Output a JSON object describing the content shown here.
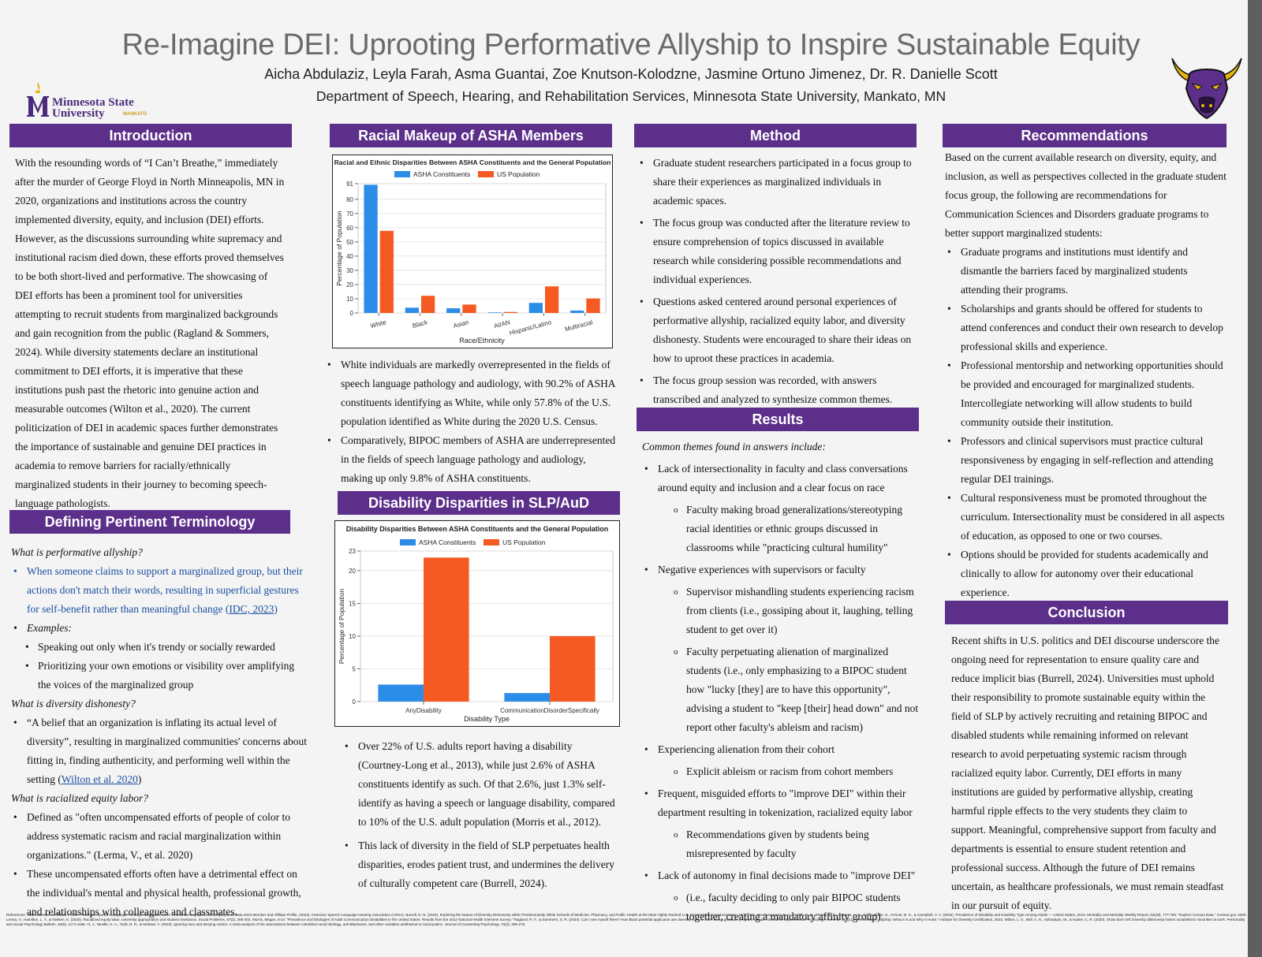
{
  "header": {
    "title": "Re-Imagine DEI: Uprooting Performative Allyship to Inspire Sustainable Equity",
    "authors": "Aicha Abdulaziz, Leyla Farah, Asma Guantai, Zoe Knutson-Kolodzne, Jasmine Ortuno Jimenez, Dr. R. Danielle Scott",
    "department": "Department of Speech, Hearing, and Rehabilitation Services, Minnesota State University, Mankato, MN"
  },
  "logo": {
    "line1": "Minnesota State",
    "line2": "University",
    "line3": "MANKATO"
  },
  "colors": {
    "purple": "#5c2f8a",
    "gold": "#e8b40c",
    "asha_blue": "#2b8de8",
    "us_orange": "#f45a21"
  },
  "intro": {
    "heading": "Introduction",
    "text": "With the resounding words of “I Can’t Breathe,” immediately after the murder of George Floyd in North Minneapolis, MN in 2020, organizations and institutions across the country implemented diversity, equity, and inclusion (DEI) efforts. However, as the discussions surrounding white supremacy and institutional racism died down, these efforts proved themselves to be both short-lived and performative. The showcasing of DEI efforts has been a prominent tool for universities attempting to recruit students from marginalized backgrounds and gain recognition from the public (Ragland & Sommers, 2024). While diversity statements declare an institutional commitment to DEI efforts, it is imperative that these institutions push past the rhetoric into genuine action and measurable outcomes (Wilton et al., 2020). The current politicization of DEI in academic spaces further demonstrates the importance of sustainable and genuine DEI practices in academia to remove barriers for racially/ethnically marginalized students in their journey to becoming speech-language pathologists."
  },
  "terms": {
    "heading": "Defining Pertinent Terminology",
    "q1": "What is performative allyship?",
    "def1": "When someone claims to support a marginalized group, but their actions don't match their words, resulting in superficial gestures for self-benefit rather than meaningful change (",
    "def1_cite": "IDC, 2023",
    "def1_end": ")",
    "examples_label": "Examples:",
    "ex1": "Speaking out only when it's trendy or socially rewarded",
    "ex2": "Prioritizing your own emotions or visibility over amplifying the voices of the marginalized group",
    "q2": "What is diversity dishonesty?",
    "def2": "“A belief that an organization is inflating its actual level of diversity”, resulting in marginalized communities' concerns about fitting in, finding authenticity, and performing well within the setting (",
    "def2_cite": "Wilton et al. 2020",
    "def2_end": ")",
    "q3": "What is racialized equity labor?",
    "def3": "Defined as \"often uncompensated efforts of people of color to address systematic racism and racial marginalization within organizations.\" (Lerma, V., et al. 2020)",
    "def4": "These uncompensated efforts often have a detrimental effect on the individual's mental and physical health, professional growth, and relationships with colleagues and classmates."
  },
  "racial": {
    "heading": "Racial Makeup of ASHA Members",
    "bullets": [
      "White individuals are markedly overrepresented in the fields of speech language pathology and audiology, with 90.2% of ASHA constituents identifying as White, while only 57.8% of the U.S. population identified as White during the 2020 U.S. Census.",
      "Comparatively, BIPOC members of ASHA are underrepresented in the fields of speech language pathology and audiology, making up only 9.8% of ASHA constituents."
    ]
  },
  "disability": {
    "heading": "Disability Disparities in SLP/AuD",
    "bullets": [
      "Over 22% of U.S. adults report having a disability (Courtney-Long et al., 2013), while just 2.6% of ASHA constituents identify as such. Of that 2.6%, just 1.3% self-identify as having a speech or language disability, compared to 10% of the U.S. adult population (Morris et al., 2012).",
      "This lack of diversity in the field of SLP perpetuates health disparities, erodes patient trust, and undermines the delivery of culturally competent care (Burrell, 2024)."
    ]
  },
  "method": {
    "heading": "Method",
    "bullets": [
      "Graduate student researchers participated in a focus group to share their experiences as marginalized individuals in academic spaces.",
      "The focus group was conducted after the literature review to ensure comprehension of topics discussed in available research while considering possible recommendations and individual experiences.",
      "Questions asked centered around personal experiences of performative allyship, racialized equity labor, and diversity dishonesty. Students were encouraged to share their ideas on how to uproot these practices in academia.",
      "The focus group session was recorded, with answers transcribed and analyzed to synthesize common themes."
    ]
  },
  "results": {
    "heading": "Results",
    "intro": "Common themes found in answers include:",
    "items": [
      {
        "t": "Lack of intersectionality in faculty and class conversations around equity and inclusion and a clear focus on race",
        "sub": [
          "Faculty making broad generalizations/stereotyping racial identities or ethnic groups discussed in classrooms while \"practicing cultural humility\""
        ]
      },
      {
        "t": "Negative experiences with supervisors or faculty",
        "sub": [
          "Supervisor mishandling students experiencing racism from clients (i.e., gossiping about it, laughing, telling student to get over it)",
          "Faculty perpetuating alienation of marginalized students (i.e., only emphasizing to a BIPOC student how \"lucky [they] are to have this opportunity\", advising a student to \"keep [their] head down\" and not report other faculty's ableism and racism)"
        ]
      },
      {
        "t": "Experiencing alienation from their cohort",
        "sub": [
          "Explicit ableism or racism from cohort members"
        ]
      },
      {
        "t": "Frequent, misguided efforts to \"improve DEI\" within their department resulting in tokenization, racialized equity labor",
        "sub": [
          "Recommendations given by students being misrepresented by faculty"
        ]
      },
      {
        "t": "Lack of autonomy in final decisions made to \"improve DEI\"",
        "sub": [
          "(i.e., faculty deciding to only pair BIPOC students together, creating a mandatory affinity group)"
        ]
      }
    ]
  },
  "recommendations": {
    "heading": "Recommendations",
    "intro": "Based on the current available research on diversity, equity, and inclusion, as well as perspectives collected in the graduate student focus group, the following are recommendations for Communication Sciences and Disorders graduate programs to better support marginalized students:",
    "bullets": [
      "Graduate programs and institutions must identify and dismantle the barriers faced by marginalized students attending their programs.",
      "Scholarships and grants should be offered for students to attend conferences and conduct their own research to develop professional skills and experience.",
      "Professional mentorship and networking opportunities should be provided and encouraged for marginalized students. Intercollegiate networking will allow students to build community outside their institution.",
      "Professors and clinical supervisors must practice cultural responsiveness by engaging in self-reflection and attending regular DEI trainings.",
      "Cultural responsiveness must be promoted throughout the curriculum. Intersectionality must be considered in all aspects of education, as opposed to one or two courses.",
      "Options should be provided for students academically and clinically to allow for autonomy over their educational experience."
    ]
  },
  "conclusion": {
    "heading": "Conclusion",
    "text": "Recent shifts in U.S. politics and DEI discourse underscore the ongoing need for representation to ensure quality care and reduce implicit bias (Burrell, 2024). Universities must uphold their responsibility to promote sustainable equity within the field of SLP by actively recruiting and retaining BIPOC and disabled students while remaining informed on relevant research to avoid perpetuating systemic racism through racialized equity labor. Currently, DEI efforts in many institutions are guided by performative allyship, creating harmful ripple effects to the very students they claim to support. Meaningful, comprehensive support from faculty and departments is essential to ensure student retention and professional success. Although the future of DEI remains uncertain, as healthcare professionals, we must remain steadfast in our pursuit of equity."
  },
  "references": "References: \"2024 Member & Affiliate Profile.\" American Speech-Language-Hearing Association, 2024. Annual Demographic and Employment Data 2023 Member and Affiliate Profile. (2023). American Speech-Language-Hearing Association (ASHA). Burrell, D. N. (2024). Exploring the Nature of Diversity Dishonesty within Predominantly White Schools of Medicine, Pharmacy, and Public Health at the Most Highly Ranked U.S. Universities. Social Sciences, 13(7), 372. Courtney-Long, E. A., Carroll, D. D., Zhang, Q. C., Stevens, A. C., Griffin-Blake, S., Armour, B. S., & Campbell, V. A. (2015). Prevalence of Disability and Disability Type Among Adults — United States, 2013. Morbidity and Mortality Weekly Report, 64(29), 777-783. \"Explore Census Data.\" Census.gov, 2020. Lerma, V., Hamilton, L. T., & Nielsen, K. (2020). Racialized equity labor, university appropriation and student resistance. Social Problems, 67(2), 286-303. Morris, Megan, et al. \"Prevalence and Etiologies of Adult Communication Disabilities in the United States: Results from the 2012 National Health Interview Survey.\" Ragland, R. F., & Sommers, S. R. (2024). Can I see myself there? How Black potential applicants use diversity cues to learn about graduate program climate. Journal of Experimental Psychology: General, 153(11). \"Performative Allyship: What It Is and Why It Hurts.\" Institute for Diversity Certification, 2023. Wilton, L. S., Bell, A. N., Vahradyan, M., & Kaiser, C. R. (2020). Show don't tell: Diversity dishonesty harms racial/ethnic minorities at work. Personality and Social Psychology Bulletin, 46(8), 1171-1185. Yi, J., Neville, H. A., Todd, N. R., & Mekawi, Y. (2023). Ignoring race and denying racism: A meta-analysis of the associations between colorblind racial ideology, anti-Blackness, and other variables antithetical to racial justice. Journal of Counseling Psychology, 70(3), 258-275.",
  "chart_data": [
    {
      "type": "bar",
      "title": "Racial and Ethnic Disparities Between ASHA Constituents and the General Population",
      "xlabel": "Race/Ethnicity",
      "ylabel": "Percentage of Population",
      "categories": [
        "White",
        "Black",
        "Asian",
        "AI/AN",
        "Hispanic/Latino",
        "Multiracial"
      ],
      "series": [
        {
          "name": "ASHA Constituents",
          "values": [
            90.2,
            3.7,
            3.3,
            0.4,
            7.1,
            1.7
          ]
        },
        {
          "name": "US Population",
          "values": [
            57.8,
            12.1,
            5.9,
            0.7,
            18.7,
            10.2
          ]
        }
      ],
      "yticks": [
        0,
        10,
        20,
        30,
        40,
        50,
        60,
        70,
        80,
        91
      ],
      "ylim": [
        0,
        91
      ],
      "grid": true,
      "legend": "top-center"
    },
    {
      "type": "bar",
      "title": "Disability Disparities Between ASHA Constituents and the General Population",
      "xlabel": "Disability Type",
      "ylabel": "Percentage of Population",
      "categories": [
        "AnyDisability",
        "CommunicationDisorderSpecifically"
      ],
      "series": [
        {
          "name": "ASHA Constituents",
          "values": [
            2.6,
            1.3
          ]
        },
        {
          "name": "US Population",
          "values": [
            22.0,
            10.0
          ]
        }
      ],
      "yticks": [
        0,
        5,
        10,
        15,
        20,
        23
      ],
      "ylim": [
        0,
        23
      ],
      "grid": true,
      "legend": "top-center"
    }
  ]
}
